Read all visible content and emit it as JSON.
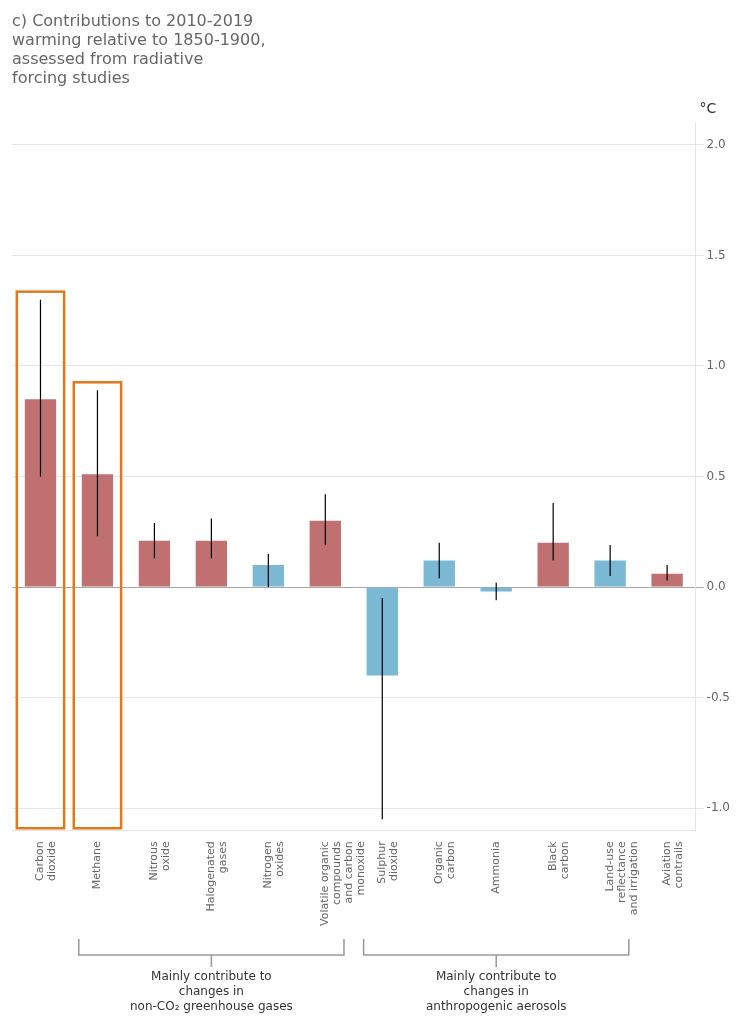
{
  "chart_data": {
    "type": "bar",
    "title": "c) Contributions to 2010-2019\nwarming relative to 1850-1900,\nassessed from radiative\nforcing studies",
    "ylabel": "°C",
    "categories": [
      "Carbon\ndioxide",
      "Methane",
      "Nitrous\noxide",
      "Halogenated\ngases",
      "Nitrogen\noxides",
      "Volatile organic\ncompounds\nand carbon\nmonoxide",
      "Sulphur\ndioxide",
      "Organic\ncarbon",
      "Ammonia",
      "Black\ncarbon",
      "Land-use\nreflectance\nand irrigation",
      "Aviation\ncontrails"
    ],
    "values": [
      0.85,
      0.51,
      0.21,
      0.21,
      0.1,
      0.3,
      -0.4,
      0.12,
      -0.02,
      0.2,
      0.12,
      0.06
    ],
    "error_plus": [
      0.45,
      0.38,
      0.08,
      0.1,
      0.05,
      0.12,
      0.35,
      0.08,
      0.04,
      0.18,
      0.07,
      0.04
    ],
    "error_minus": [
      0.35,
      0.28,
      0.08,
      0.08,
      0.1,
      0.11,
      0.65,
      0.08,
      0.04,
      0.08,
      0.07,
      0.03
    ],
    "colors": [
      "#c07070",
      "#c07070",
      "#c07070",
      "#c07070",
      "#7ab8d4",
      "#c07070",
      "#7ab8d4",
      "#7ab8d4",
      "#7ab8d4",
      "#c07070",
      "#7ab8d4",
      "#c07070"
    ],
    "ylim": [
      -1.1,
      2.1
    ],
    "yticks": [
      {
        "value": -1.0,
        "label": "-1.0"
      },
      {
        "value": -0.5,
        "label": "-0.5"
      },
      {
        "value": 0,
        "label": "0.0"
      },
      {
        "value": 0.5,
        "label": "0.5"
      },
      {
        "value": 1.0,
        "label": "1.0"
      },
      {
        "value": 1.5,
        "label": "1.5"
      },
      {
        "value": 2.0,
        "label": "2.0"
      }
    ],
    "grid": true,
    "highlight": {
      "categories": [
        "Carbon\ndioxide",
        "Methane"
      ],
      "color": "#e07820"
    },
    "annotations": [
      {
        "text": "Mainly contribute to\nchanges in\nnon-CO₂ greenhouse gases",
        "from": "Methane",
        "to": "Volatile organic\ncompounds\nand carbon\nmonoxide"
      },
      {
        "text": "Mainly contribute to\nchanges in\nanthropogenic aerosols",
        "from": "Sulphur\ndioxide",
        "to": "Land-use\nreflectance\nand irrigation"
      }
    ]
  }
}
